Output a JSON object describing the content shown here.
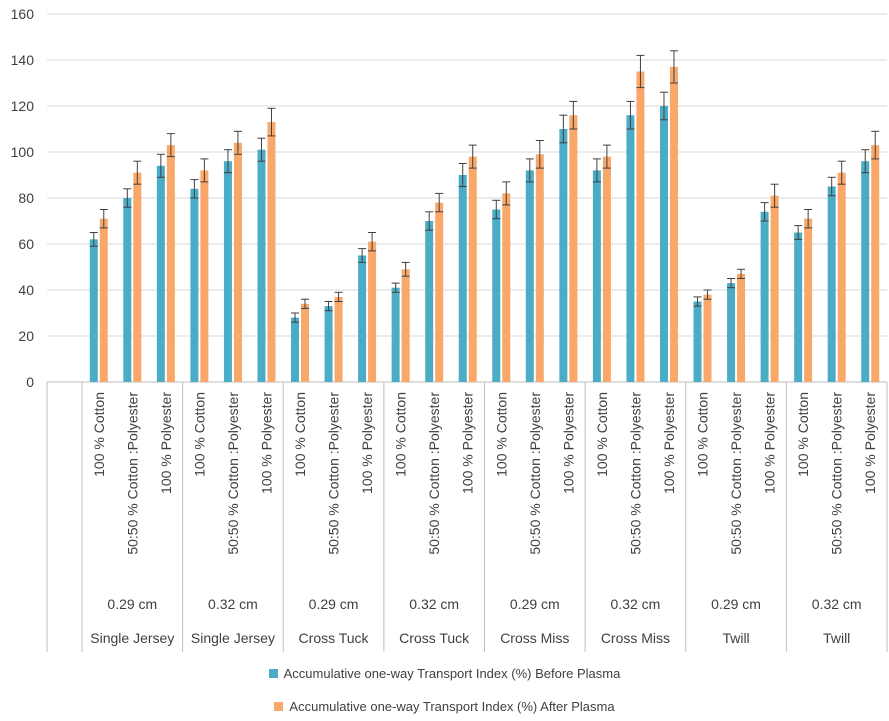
{
  "chart_data": {
    "type": "bar",
    "ylim": [
      0,
      160
    ],
    "yticks": [
      0,
      20,
      40,
      60,
      80,
      100,
      120,
      140,
      160
    ],
    "grid": true,
    "legend_position": "bottom",
    "groups": [
      {
        "diameter": "0.29 cm",
        "structure": "Single Jersey",
        "categories": [
          "100 % Cotton",
          "50:50 % Cotton :Polyester",
          "100 % Polyester"
        ]
      },
      {
        "diameter": "0.32 cm",
        "structure": "Single Jersey",
        "categories": [
          "100 % Cotton",
          "50:50 % Cotton :Polyester",
          "100 % Polyester"
        ]
      },
      {
        "diameter": "0.29 cm",
        "structure": "Cross Tuck",
        "categories": [
          "100 % Cotton",
          "50:50 % Cotton :Polyester",
          "100 % Polyester"
        ]
      },
      {
        "diameter": "0.32 cm",
        "structure": "Cross Tuck",
        "categories": [
          "100 % Cotton",
          "50:50 % Cotton :Polyester",
          "100 % Polyester"
        ]
      },
      {
        "diameter": "0.29 cm",
        "structure": "Cross Miss",
        "categories": [
          "100 % Cotton",
          "50:50 % Cotton :Polyester",
          "100 % Polyester"
        ]
      },
      {
        "diameter": "0.32 cm",
        "structure": "Cross Miss",
        "categories": [
          "100 % Cotton",
          "50:50 % Cotton :Polyester",
          "100 % Polyester"
        ]
      },
      {
        "diameter": "0.29 cm",
        "structure": "Twill",
        "categories": [
          "100 % Cotton",
          "50:50 % Cotton :Polyester",
          "100 % Polyester"
        ]
      },
      {
        "diameter": "0.32 cm",
        "structure": "Twill",
        "categories": [
          "100 % Cotton",
          "50:50 % Cotton :Polyester",
          "100 % Polyester"
        ]
      }
    ],
    "series": [
      {
        "name": "Accumulative one-way Transport Index (%) Before Plasma",
        "color": "#4BACC6",
        "values": [
          62,
          80,
          94,
          84,
          96,
          101,
          28,
          33,
          55,
          41,
          70,
          90,
          75,
          92,
          110,
          92,
          116,
          120,
          35,
          43,
          74,
          65,
          85,
          96
        ],
        "errors": [
          3,
          4,
          5,
          4,
          5,
          5,
          2,
          2,
          3,
          2,
          4,
          5,
          4,
          5,
          6,
          5,
          6,
          6,
          2,
          2,
          4,
          3,
          4,
          5
        ]
      },
      {
        "name": "Accumulative one-way Transport Index (%) After Plasma",
        "color": "#F9A86A",
        "values": [
          71,
          91,
          103,
          92,
          104,
          113,
          34,
          37,
          61,
          49,
          78,
          98,
          82,
          99,
          116,
          98,
          135,
          137,
          38,
          47,
          81,
          71,
          91,
          103
        ],
        "errors": [
          4,
          5,
          5,
          5,
          5,
          6,
          2,
          2,
          4,
          3,
          4,
          5,
          5,
          6,
          6,
          5,
          7,
          7,
          2,
          2,
          5,
          4,
          5,
          6
        ]
      }
    ]
  }
}
